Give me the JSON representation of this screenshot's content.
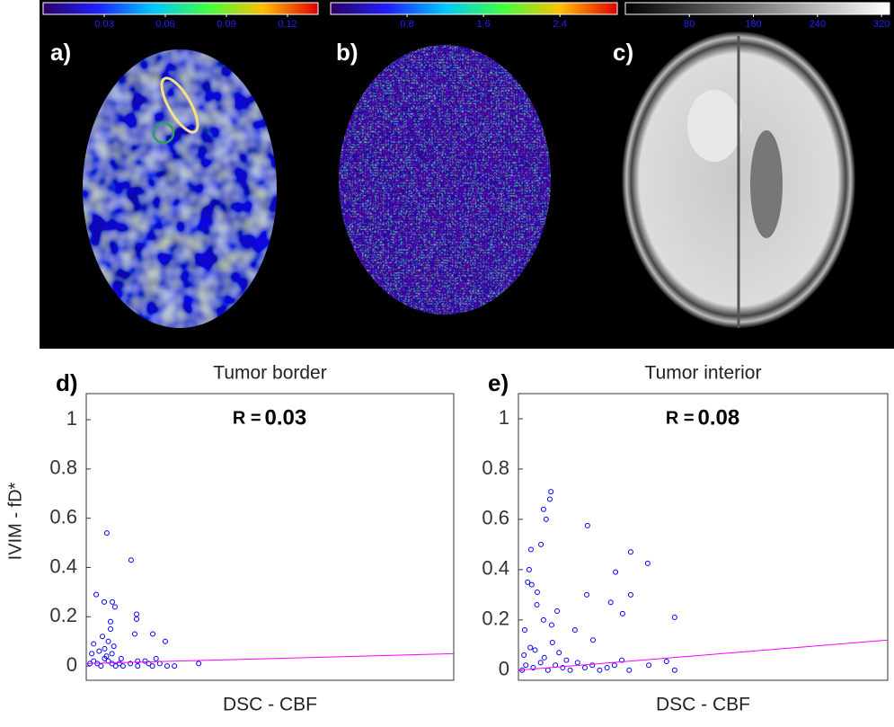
{
  "images": [
    {
      "label": "a)",
      "colorbar": {
        "lim": [
          0,
          0.135
        ],
        "ticks": [
          0.03,
          0.06,
          0.09,
          0.12
        ]
      }
    },
    {
      "label": "b)",
      "colorbar": {
        "lim": [
          0,
          3.0
        ],
        "ticks": [
          0.8,
          1.6,
          2.4
        ]
      }
    },
    {
      "label": "c)",
      "colorbar": {
        "lim": [
          0,
          330
        ],
        "ticks": [
          80,
          160,
          240,
          320
        ]
      }
    }
  ],
  "chart_data": [
    {
      "type": "scatter",
      "panel_label": "d)",
      "title": "Tumor border",
      "xlabel": "DSC - CBF",
      "ylabel": "IVIM - fD*",
      "r_label": "R =",
      "r_value": 0.03,
      "xlim": [
        0,
        1
      ],
      "ylim": [
        -0.058,
        1.106
      ],
      "yticks": [
        0,
        0.2,
        0.4,
        0.6,
        0.8,
        1
      ],
      "series": [
        {
          "color": "#0000ff",
          "x": [
            0.056,
            0.122,
            0.027,
            0.049,
            0.071,
            0.078,
            0.137,
            0.137,
            0.066,
            0.066,
            0.044,
            0.02,
            0.181,
            0.132,
            0.215,
            0.306,
            0.01,
            0.02,
            0.03,
            0.04,
            0.05,
            0.06,
            0.07,
            0.08,
            0.09,
            0.1,
            0.12,
            0.14,
            0.16,
            0.18,
            0.2,
            0.22,
            0.24,
            0.015,
            0.035,
            0.055,
            0.075,
            0.095,
            0.14,
            0.17,
            0.19,
            0.05,
            0.06,
            0.07
          ],
          "values": [
            0.54,
            0.43,
            0.29,
            0.26,
            0.26,
            0.24,
            0.21,
            0.19,
            0.18,
            0.15,
            0.12,
            0.09,
            0.13,
            0.13,
            0.1,
            0.01,
            0.01,
            0.02,
            0.01,
            0.0,
            0.03,
            0.02,
            0.01,
            0.0,
            0.01,
            0.0,
            0.01,
            0.0,
            0.02,
            0.0,
            0.01,
            0.0,
            0.0,
            0.05,
            0.06,
            0.04,
            0.08,
            0.03,
            0.02,
            0.01,
            0.03,
            0.07,
            0.1,
            0.05
          ]
        }
      ],
      "fit_line": {
        "color": "#ff00ff",
        "values": [
          0.01,
          0.05
        ]
      }
    },
    {
      "type": "scatter",
      "panel_label": "e)",
      "title": "Tumor interior",
      "xlabel": "DSC - CBF",
      "r_label": "R =",
      "r_value": 0.08,
      "xlim": [
        0,
        1
      ],
      "ylim": [
        -0.04,
        1.1
      ],
      "yticks": [
        0,
        0.2,
        0.4,
        0.6,
        0.8,
        1
      ],
      "series": [
        {
          "color": "#0000ff",
          "x": [
            0.088,
            0.085,
            0.068,
            0.075,
            0.187,
            0.061,
            0.034,
            0.304,
            0.35,
            0.263,
            0.029,
            0.036,
            0.051,
            0.185,
            0.304,
            0.25,
            0.282,
            0.423,
            0.105,
            0.068,
            0.153,
            0.202,
            0.092,
            0.28,
            0.353,
            0.401,
            0.423,
            0.017,
            0.032,
            0.01,
            0.02,
            0.04,
            0.06,
            0.08,
            0.1,
            0.12,
            0.14,
            0.16,
            0.18,
            0.2,
            0.22,
            0.24,
            0.26,
            0.3,
            0.015,
            0.045,
            0.07,
            0.11,
            0.13,
            0.05,
            0.09,
            0.025
          ],
          "values": [
            0.71,
            0.68,
            0.64,
            0.6,
            0.575,
            0.5,
            0.48,
            0.47,
            0.425,
            0.39,
            0.4,
            0.34,
            0.31,
            0.3,
            0.3,
            0.27,
            0.225,
            0.21,
            0.235,
            0.2,
            0.16,
            0.12,
            0.11,
            0.04,
            0.02,
            0.035,
            0.0,
            0.16,
            0.09,
            0.0,
            0.02,
            0.01,
            0.03,
            0.0,
            0.02,
            0.01,
            0.0,
            0.03,
            0.01,
            0.02,
            0.0,
            0.01,
            0.02,
            0.0,
            0.06,
            0.08,
            0.05,
            0.07,
            0.04,
            0.26,
            0.18,
            0.35
          ]
        }
      ],
      "fit_line": {
        "color": "#ff00ff",
        "values": [
          0.0,
          0.12
        ]
      }
    }
  ]
}
